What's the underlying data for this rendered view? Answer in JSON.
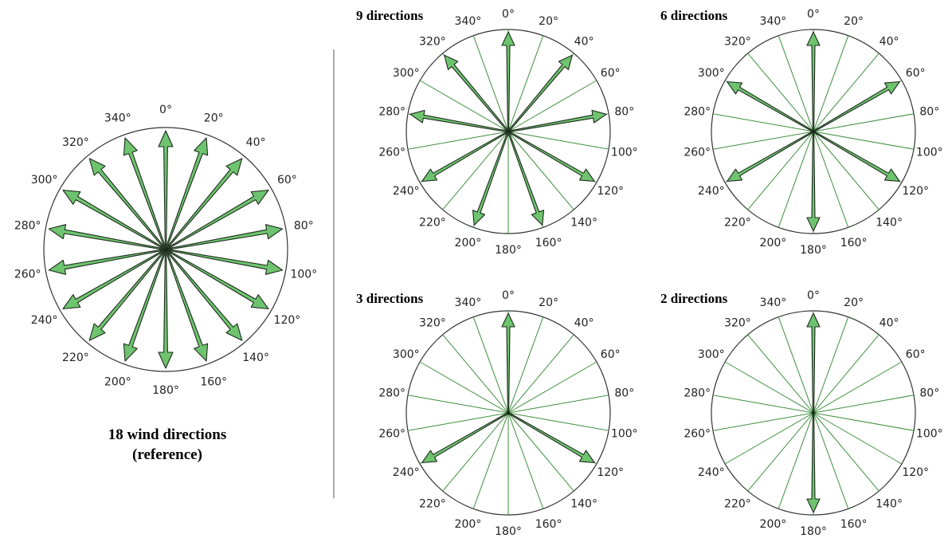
{
  "colors": {
    "arrow_fill": "#6ec46e",
    "arrow_stroke": "#1f2a1f",
    "spoke": "#3f8f3f",
    "rim": "#333333"
  },
  "angle_labels": [
    "0°",
    "20°",
    "40°",
    "60°",
    "80°",
    "100°",
    "120°",
    "140°",
    "160°",
    "180°",
    "200°",
    "220°",
    "240°",
    "260°",
    "280°",
    "300°",
    "320°",
    "340°"
  ],
  "panels": [
    {
      "id": "ref",
      "title": "",
      "caption_lines": [
        "18 wind directions",
        "(reference)"
      ],
      "arrow_degrees": [
        0,
        20,
        40,
        60,
        80,
        100,
        120,
        140,
        160,
        180,
        200,
        220,
        240,
        260,
        280,
        300,
        320,
        340
      ],
      "spokes": false
    },
    {
      "id": "p9",
      "title": "9 directions",
      "caption_lines": [],
      "arrow_degrees": [
        0,
        40,
        80,
        120,
        160,
        200,
        240,
        280,
        320
      ],
      "spokes": true
    },
    {
      "id": "p6",
      "title": "6 directions",
      "caption_lines": [],
      "arrow_degrees": [
        0,
        60,
        120,
        180,
        240,
        300
      ],
      "spokes": true
    },
    {
      "id": "p3",
      "title": "3 directions",
      "caption_lines": [],
      "arrow_degrees": [
        0,
        120,
        240
      ],
      "spokes": true
    },
    {
      "id": "p2",
      "title": "2 directions",
      "caption_lines": [],
      "arrow_degrees": [
        0,
        180
      ],
      "spokes": true
    }
  ]
}
